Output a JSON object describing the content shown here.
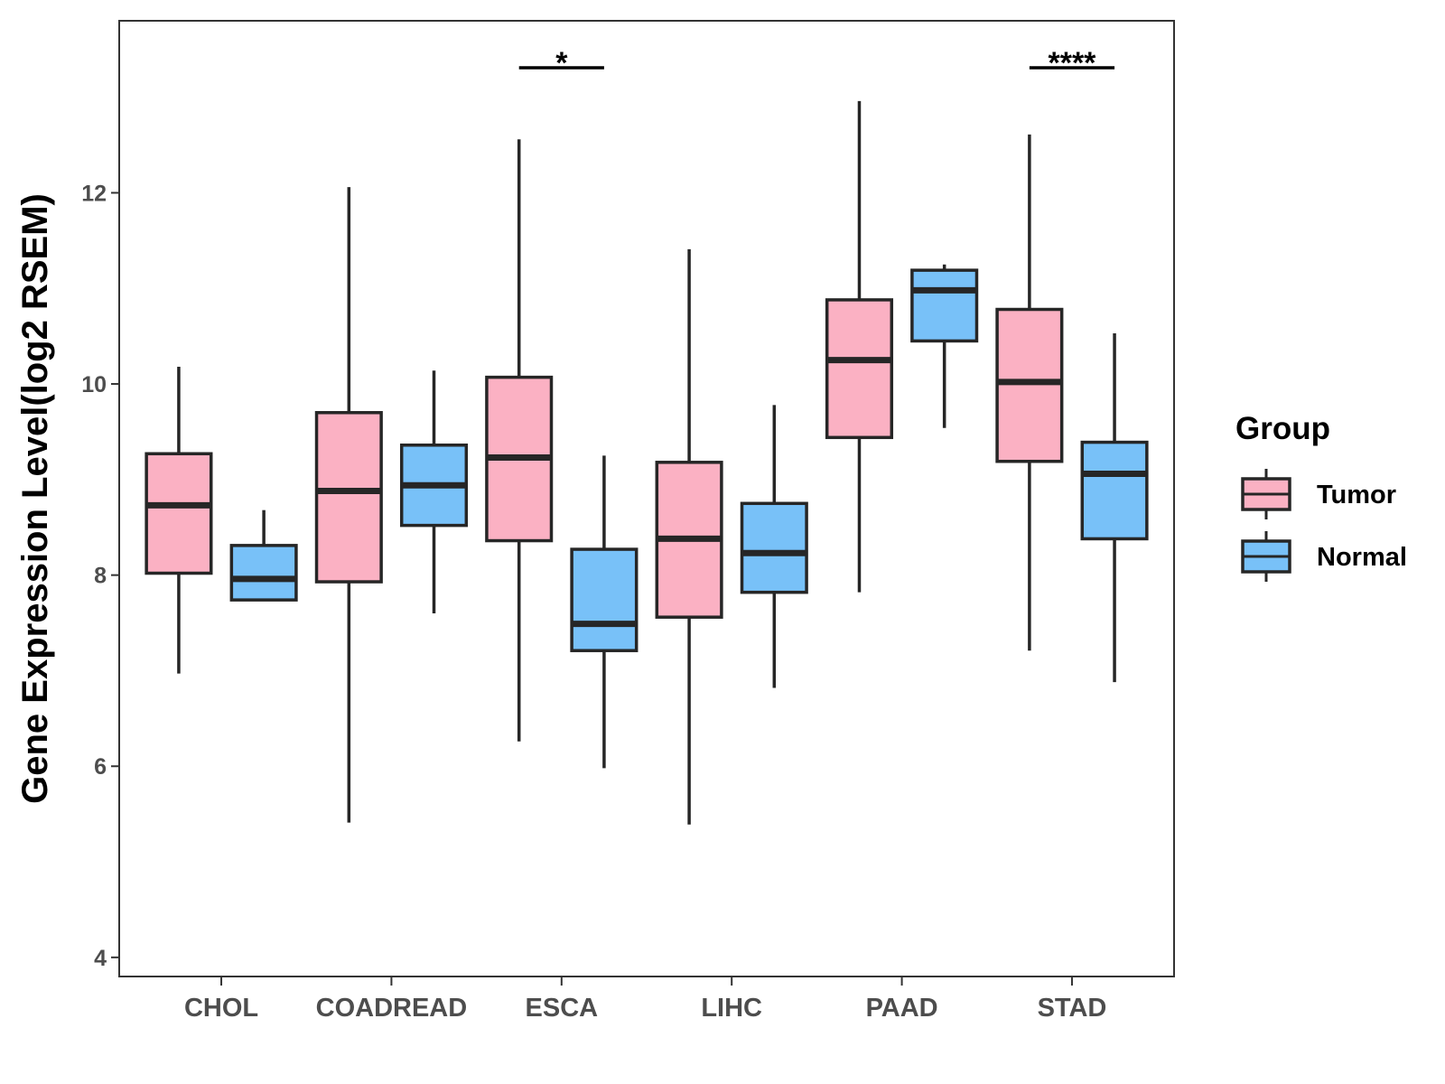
{
  "chart_data": {
    "type": "boxplot",
    "title": "",
    "xlabel": "",
    "ylabel": "Gene Expression Level(log2 RSEM)",
    "ylim": [
      3.8,
      13.8
    ],
    "yticks": [
      4,
      6,
      8,
      10,
      12
    ],
    "categories": [
      "CHOL",
      "COADREAD",
      "ESCA",
      "LIHC",
      "PAAD",
      "STAD"
    ],
    "legend": {
      "title": "Group",
      "position": "right"
    },
    "series": [
      {
        "name": "Tumor",
        "color": "#FBB1C3",
        "boxes": [
          {
            "min": 6.97,
            "q1": 8.02,
            "median": 8.73,
            "q3": 9.27,
            "max": 10.18
          },
          {
            "min": 5.41,
            "q1": 7.93,
            "median": 8.88,
            "q3": 9.7,
            "max": 12.06
          },
          {
            "min": 6.26,
            "q1": 8.36,
            "median": 9.23,
            "q3": 10.07,
            "max": 12.56
          },
          {
            "min": 5.39,
            "q1": 7.56,
            "median": 8.38,
            "q3": 9.18,
            "max": 11.41
          },
          {
            "min": 7.82,
            "q1": 9.44,
            "median": 10.25,
            "q3": 10.88,
            "max": 12.96
          },
          {
            "min": 7.21,
            "q1": 9.19,
            "median": 10.02,
            "q3": 10.78,
            "max": 12.61
          }
        ]
      },
      {
        "name": "Normal",
        "color": "#78C1F8",
        "boxes": [
          {
            "min": 7.74,
            "q1": 7.74,
            "median": 7.96,
            "q3": 8.31,
            "max": 8.68
          },
          {
            "min": 7.6,
            "q1": 8.52,
            "median": 8.94,
            "q3": 9.36,
            "max": 10.14
          },
          {
            "min": 5.98,
            "q1": 7.21,
            "median": 7.49,
            "q3": 8.27,
            "max": 9.25
          },
          {
            "min": 6.82,
            "q1": 7.82,
            "median": 8.23,
            "q3": 8.75,
            "max": 9.78
          },
          {
            "min": 9.54,
            "q1": 10.45,
            "median": 10.98,
            "q3": 11.19,
            "max": 11.25
          },
          {
            "min": 6.88,
            "q1": 8.38,
            "median": 9.06,
            "q3": 9.39,
            "max": 10.53
          }
        ]
      }
    ],
    "annotations": [
      {
        "category": "ESCA",
        "label": "*"
      },
      {
        "category": "STAD",
        "label": "****"
      }
    ]
  }
}
